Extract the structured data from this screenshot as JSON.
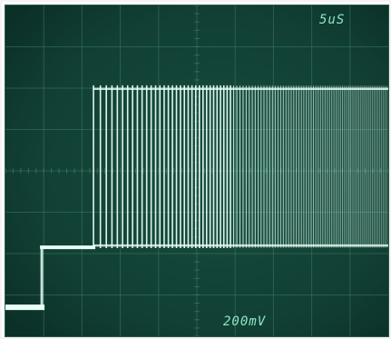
{
  "chart_data": {
    "type": "line",
    "title": "",
    "xlabel": "",
    "ylabel": "",
    "time_per_division": "5uS",
    "volts_per_division": "200mV",
    "divisions": {
      "x": 10,
      "y": 8
    },
    "grid": true,
    "xlim": [
      0,
      10
    ],
    "ylim": [
      0,
      8
    ],
    "trace": {
      "color": "#e8fff6",
      "baseline_level": 0.7,
      "step_time": 0.95,
      "step_level": 2.15,
      "pulse_start": 2.3,
      "pulse_high_level": 6.05,
      "initial_pulse_period": 0.18,
      "final_pulse_period": 0.045,
      "blur_start": 5.9
    }
  },
  "colors": {
    "screen": "#0f3a30",
    "grid": "#3e7a66",
    "trace": "#e8fff6",
    "glow": "#7fe8c3"
  }
}
